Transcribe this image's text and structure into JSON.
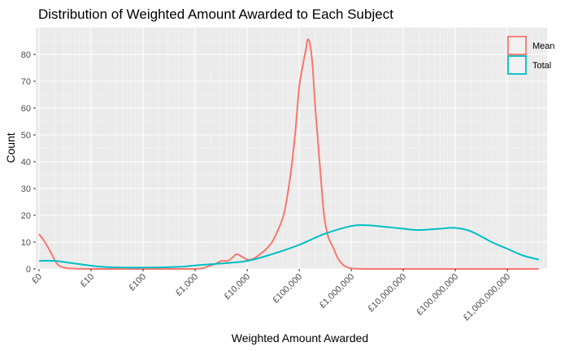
{
  "chart_data": {
    "type": "line",
    "title": "Distribution of Weighted Amount Awarded to Each Subject",
    "xlabel": "Weighted Amount Awarded",
    "ylabel": "Count",
    "x_scale": "log10",
    "x_tick_labels": [
      "£0",
      "£10",
      "£100",
      "£1,000",
      "£10,000",
      "£100,000",
      "£1,000,000",
      "£10,000,000",
      "£100,000,000",
      "£1,000,000,000"
    ],
    "x_tick_values": [
      1,
      10,
      100,
      1000,
      10000,
      100000,
      1000000,
      10000000,
      100000000,
      1000000000
    ],
    "xlim": [
      1,
      5000000000
    ],
    "ylim": [
      0,
      90
    ],
    "y_ticks": [
      0,
      10,
      20,
      30,
      40,
      50,
      60,
      70,
      80
    ],
    "grid": true,
    "legend_position": "top-right",
    "series": [
      {
        "name": "Mean",
        "color": "#F8766D",
        "points": [
          [
            1,
            13
          ],
          [
            1.3,
            10
          ],
          [
            1.7,
            6
          ],
          [
            2.2,
            2
          ],
          [
            3,
            0.5
          ],
          [
            5,
            0.1
          ],
          [
            10,
            0
          ],
          [
            100,
            0
          ],
          [
            1000,
            0
          ],
          [
            1800,
            1
          ],
          [
            2500,
            2
          ],
          [
            3200,
            3
          ],
          [
            4200,
            3
          ],
          [
            5200,
            4.2
          ],
          [
            6300,
            5.5
          ],
          [
            8000,
            4.5
          ],
          [
            10000,
            3.5
          ],
          [
            12000,
            3.5
          ],
          [
            15000,
            4.5
          ],
          [
            22000,
            7
          ],
          [
            30000,
            10
          ],
          [
            40000,
            15
          ],
          [
            50000,
            20
          ],
          [
            60000,
            28
          ],
          [
            70000,
            37
          ],
          [
            85000,
            52
          ],
          [
            100000,
            68
          ],
          [
            120000,
            77
          ],
          [
            135000,
            82
          ],
          [
            145000,
            85.5
          ],
          [
            160000,
            84
          ],
          [
            180000,
            76
          ],
          [
            200000,
            62
          ],
          [
            230000,
            47
          ],
          [
            260000,
            34
          ],
          [
            300000,
            20
          ],
          [
            360000,
            12
          ],
          [
            450000,
            8
          ],
          [
            550000,
            4
          ],
          [
            700000,
            1.5
          ],
          [
            900000,
            0.4
          ],
          [
            1200000,
            0.1
          ],
          [
            2000000,
            0
          ],
          [
            100000000,
            0
          ],
          [
            4000000000,
            0
          ]
        ]
      },
      {
        "name": "Total",
        "color": "#00BFC4",
        "points": [
          [
            1,
            3
          ],
          [
            2,
            3
          ],
          [
            5,
            2
          ],
          [
            10,
            1.2
          ],
          [
            20,
            0.7
          ],
          [
            100,
            0.5
          ],
          [
            500,
            0.8
          ],
          [
            1000,
            1.3
          ],
          [
            3000,
            2
          ],
          [
            10000,
            3
          ],
          [
            30000,
            5.5
          ],
          [
            100000,
            9
          ],
          [
            300000,
            13
          ],
          [
            1000000,
            16
          ],
          [
            2000000,
            16.3
          ],
          [
            4000000,
            15.8
          ],
          [
            10000000,
            15
          ],
          [
            20000000,
            14.5
          ],
          [
            50000000,
            15
          ],
          [
            100000000,
            15.3
          ],
          [
            200000000,
            14
          ],
          [
            500000000,
            10
          ],
          [
            1000000000,
            7.5
          ],
          [
            2000000000,
            5
          ],
          [
            4000000000,
            3.5
          ]
        ]
      }
    ]
  }
}
